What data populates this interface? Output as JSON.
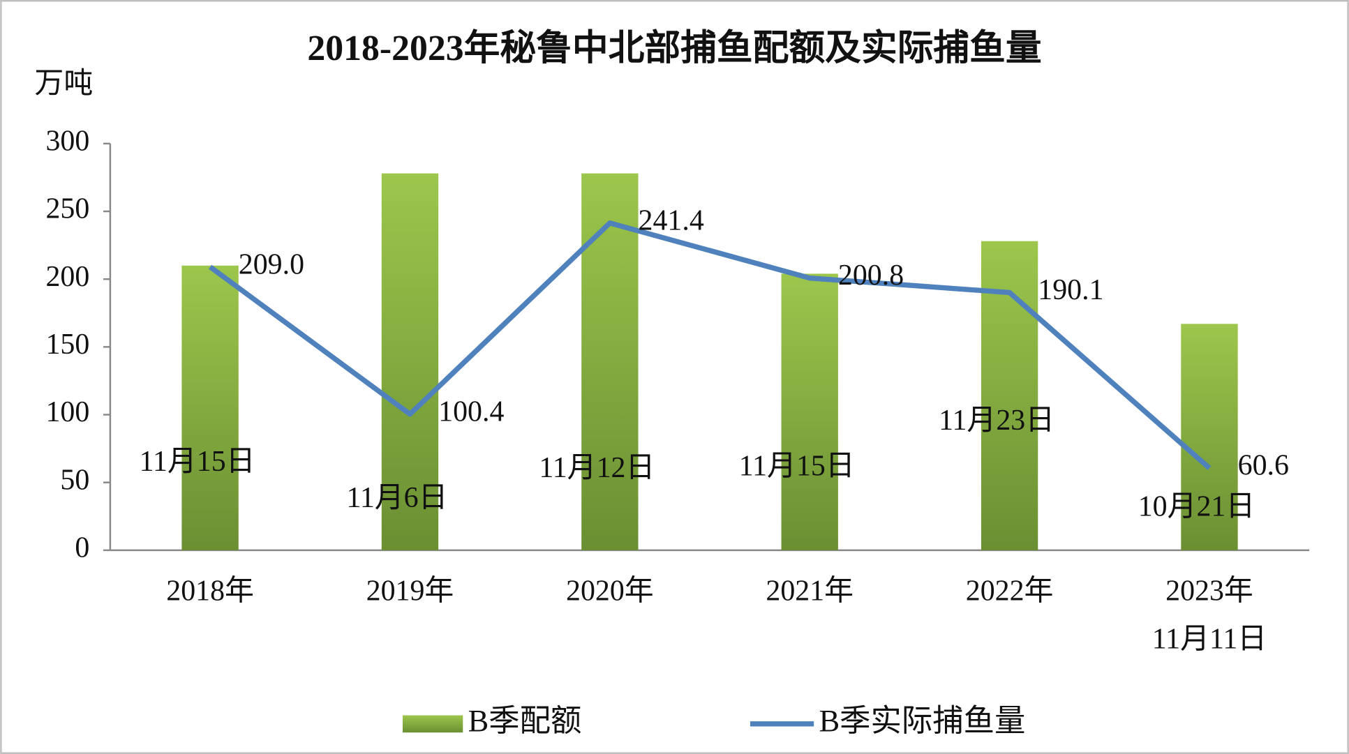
{
  "chart_data": {
    "type": "bar-line",
    "title": "2018-2023年秘鲁中北部捕鱼配额及实际捕鱼量",
    "y_label": "万吨",
    "categories": [
      "2018年",
      "2019年",
      "2020年",
      "2021年",
      "2022年",
      "2023年\n11月11日"
    ],
    "series": [
      {
        "name": "B季配额",
        "type": "bar",
        "color": "#8db543",
        "values": [
          210,
          278,
          278,
          204,
          228,
          167
        ]
      },
      {
        "name": "B季实际捕鱼量",
        "type": "line",
        "color": "#4f81bd",
        "values": [
          209.0,
          100.4,
          241.4,
          200.8,
          190.1,
          60.6
        ],
        "value_labels": [
          "209.0",
          "100.4",
          "241.4",
          "200.8",
          "190.1",
          "60.6"
        ]
      }
    ],
    "annotations": [
      "11月15日",
      "11月6日",
      "11月12日",
      "11月15日",
      "11月23日",
      "10月21日"
    ],
    "ylim": [
      0,
      300
    ],
    "yticks": [
      0,
      50,
      100,
      150,
      200,
      250,
      300
    ],
    "legend": "bottom"
  }
}
